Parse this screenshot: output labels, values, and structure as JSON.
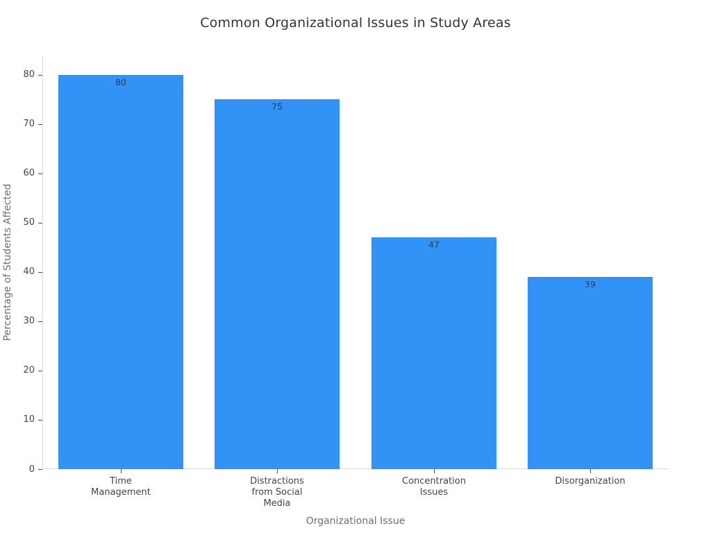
{
  "chart_data": {
    "type": "bar",
    "title": "Common Organizational Issues in Study Areas",
    "xlabel": "Organizational Issue",
    "ylabel": "Percentage of Students Affected",
    "categories": [
      "Time Management",
      "Distractions from Social Media",
      "Concentration Issues",
      "Disorganization"
    ],
    "category_label_lines": [
      [
        "Time",
        "Management"
      ],
      [
        "Distractions",
        "from Social",
        "Media"
      ],
      [
        "Concentration",
        "Issues"
      ],
      [
        "Disorganization"
      ]
    ],
    "values": [
      80,
      75,
      47,
      39
    ],
    "bar_value_labels": [
      "80",
      "75",
      "47",
      "39"
    ],
    "yticks": [
      0,
      10,
      20,
      30,
      40,
      50,
      60,
      70,
      80
    ],
    "ylim": [
      0,
      83.8
    ],
    "grid": false,
    "legend": false,
    "colors": {
      "bar": "#3193f6",
      "bar_value_label": "#2a3f5f",
      "title": "#333333",
      "tick_label": "#444444",
      "tick_mark": "#4a4a4a",
      "axis_title": "#6e6e6e",
      "axis_line": "#d9d9d9",
      "background": "#ffffff"
    }
  }
}
